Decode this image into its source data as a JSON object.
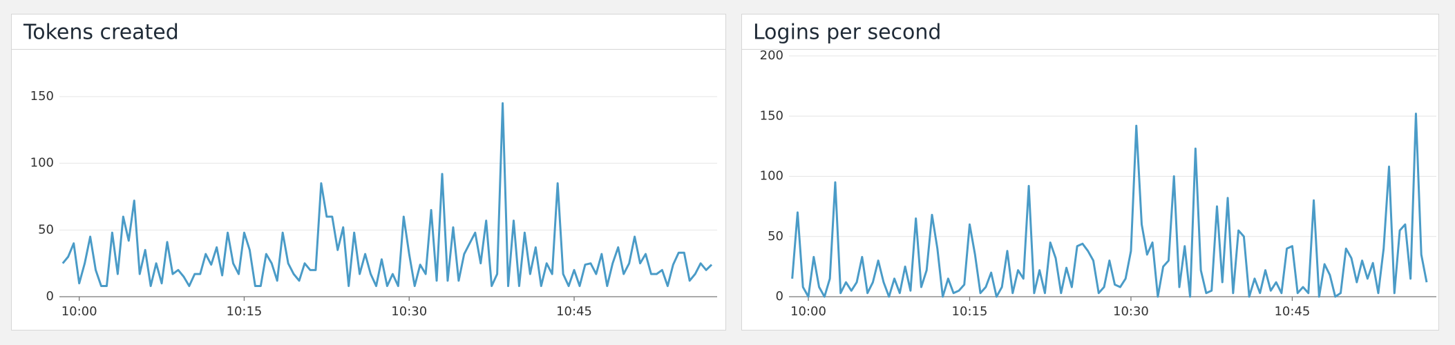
{
  "chart_data": [
    {
      "type": "line",
      "title": "Tokens created",
      "x": [
        -1.5,
        -1,
        -0.5,
        0,
        0.5,
        1,
        1.5,
        2,
        2.5,
        3,
        3.5,
        4,
        4.5,
        5,
        5.5,
        6,
        6.5,
        7,
        7.5,
        8,
        8.5,
        9,
        9.5,
        10,
        10.5,
        11,
        11.5,
        12,
        12.5,
        13,
        13.5,
        14,
        14.5,
        15,
        15.5,
        16,
        16.5,
        17,
        17.5,
        18,
        18.5,
        19,
        19.5,
        20,
        20.5,
        21,
        21.5,
        22,
        22.5,
        23,
        23.5,
        24,
        24.5,
        25,
        25.5,
        26,
        26.5,
        27,
        27.5,
        28,
        28.5,
        29,
        29.5,
        30,
        30.5,
        31,
        31.5,
        32,
        32.5,
        33,
        33.5,
        34,
        34.5,
        35,
        35.5,
        36,
        36.5,
        37,
        37.5,
        38,
        38.5,
        39,
        39.5,
        40,
        40.5,
        41,
        41.5,
        42,
        42.5,
        43,
        43.5,
        44,
        44.5,
        45,
        45.5,
        46,
        46.5,
        47,
        47.5,
        48,
        48.5,
        49,
        49.5,
        50,
        50.5,
        51,
        51.5,
        52,
        52.5,
        53,
        53.5,
        54,
        54.5,
        55,
        55.5,
        56,
        56.5,
        57,
        57.5
      ],
      "series": [
        {
          "color": "#4a9bc7",
          "values": [
            25,
            30,
            40,
            10,
            25,
            45,
            20,
            8,
            8,
            48,
            17,
            60,
            42,
            72,
            17,
            35,
            8,
            25,
            10,
            41,
            17,
            20,
            15,
            8,
            17,
            17,
            32,
            24,
            37,
            16,
            48,
            25,
            17,
            48,
            35,
            8,
            8,
            32,
            25,
            12,
            48,
            25,
            17,
            12,
            25,
            20,
            20,
            85,
            60,
            60,
            35,
            52,
            8,
            48,
            17,
            32,
            17,
            8,
            28,
            8,
            17,
            8,
            60,
            32,
            8,
            24,
            17,
            65,
            12,
            92,
            12,
            52,
            12,
            32,
            40,
            48,
            25,
            57,
            8,
            17,
            145,
            8,
            57,
            8,
            48,
            17,
            37,
            8,
            25,
            17,
            85,
            17,
            8,
            20,
            8,
            24,
            25,
            17,
            32,
            8,
            25,
            37,
            17,
            25,
            45,
            25,
            32,
            17,
            17,
            20,
            8,
            24,
            33,
            33,
            12,
            17,
            25,
            20,
            24
          ]
        }
      ],
      "xlim": [
        -1.8,
        58
      ],
      "xticks": [
        {
          "value": 0,
          "label": "10:00"
        },
        {
          "value": 15,
          "label": "10:15"
        },
        {
          "value": 30,
          "label": "10:30"
        },
        {
          "value": 45,
          "label": "10:45"
        }
      ],
      "ylim": [
        0,
        180.5
      ],
      "yticks": [
        0,
        50,
        100,
        150
      ],
      "grid": true
    },
    {
      "type": "line",
      "title": "Logins per second",
      "x": [
        -1.5,
        -1,
        -0.5,
        0,
        0.5,
        1,
        1.5,
        2,
        2.5,
        3,
        3.5,
        4,
        4.5,
        5,
        5.5,
        6,
        6.5,
        7,
        7.5,
        8,
        8.5,
        9,
        9.5,
        10,
        10.5,
        11,
        11.5,
        12,
        12.5,
        13,
        13.5,
        14,
        14.5,
        15,
        15.5,
        16,
        16.5,
        17,
        17.5,
        18,
        18.5,
        19,
        19.5,
        20,
        20.5,
        21,
        21.5,
        22,
        22.5,
        23,
        23.5,
        24,
        24.5,
        25,
        25.5,
        26,
        26.5,
        27,
        27.5,
        28,
        28.5,
        29,
        29.5,
        30,
        30.5,
        31,
        31.5,
        32,
        32.5,
        33,
        33.5,
        34,
        34.5,
        35,
        35.5,
        36,
        36.5,
        37,
        37.5,
        38,
        38.5,
        39,
        39.5,
        40,
        40.5,
        41,
        41.5,
        42,
        42.5,
        43,
        43.5,
        44,
        44.5,
        45,
        45.5,
        46,
        46.5,
        47,
        47.5,
        48,
        48.5,
        49,
        49.5,
        50,
        50.5,
        51,
        51.5,
        52,
        52.5,
        53,
        53.5,
        54,
        54.5,
        55,
        55.5,
        56,
        56.5,
        57,
        57.5
      ],
      "series": [
        {
          "color": "#4a9bc7",
          "values": [
            15,
            70,
            8,
            0,
            33,
            8,
            0,
            15,
            95,
            3,
            12,
            5,
            12,
            33,
            3,
            12,
            30,
            12,
            0,
            15,
            3,
            25,
            5,
            65,
            8,
            22,
            68,
            40,
            0,
            15,
            3,
            5,
            10,
            60,
            35,
            3,
            8,
            20,
            0,
            8,
            38,
            3,
            22,
            15,
            92,
            3,
            22,
            3,
            45,
            32,
            3,
            24,
            8,
            42,
            44,
            38,
            30,
            3,
            8,
            30,
            10,
            8,
            15,
            38,
            142,
            60,
            35,
            45,
            0,
            25,
            30,
            100,
            8,
            42,
            0,
            123,
            22,
            3,
            5,
            75,
            12,
            82,
            3,
            55,
            50,
            0,
            15,
            3,
            22,
            5,
            12,
            3,
            40,
            42,
            3,
            8,
            3,
            80,
            0,
            27,
            18,
            0,
            3,
            40,
            32,
            12,
            30,
            15,
            28,
            3,
            40,
            108,
            3,
            55,
            60,
            15,
            152,
            35,
            12
          ]
        }
      ],
      "xlim": [
        -1.8,
        58.4
      ],
      "xticks": [
        {
          "value": 0,
          "label": "10:00"
        },
        {
          "value": 15,
          "label": "10:15"
        },
        {
          "value": 30,
          "label": "10:30"
        },
        {
          "value": 45,
          "label": "10:45"
        }
      ],
      "ylim": [
        0,
        200
      ],
      "yticks": [
        0,
        50,
        100,
        150,
        200
      ],
      "grid": true
    }
  ]
}
